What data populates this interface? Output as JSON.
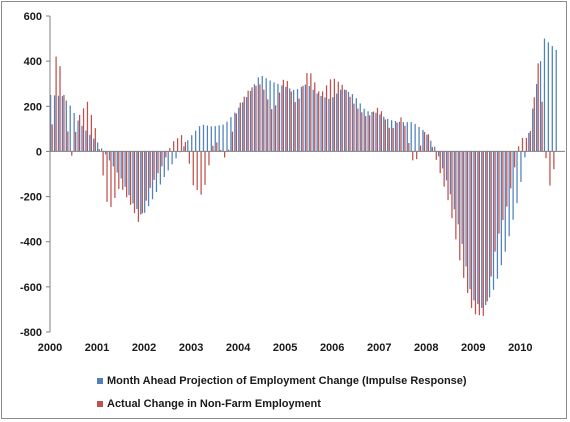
{
  "chart_data": {
    "type": "bar",
    "title": "",
    "xlabel": "",
    "ylabel": "",
    "x_start": 2000,
    "x_end": 2010.95,
    "ylim": [
      -800,
      600
    ],
    "y_ticks": [
      600,
      400,
      200,
      0,
      -200,
      -400,
      -600,
      -800
    ],
    "x_ticks": [
      "2000",
      "2001",
      "2002",
      "2003",
      "2004",
      "2005",
      "2006",
      "2007",
      "2008",
      "2009",
      "2010"
    ],
    "grid": false,
    "legend_position": "bottom",
    "series": [
      {
        "name": "Month Ahead Projection of Employment Change (Impulse Response)",
        "color": "#4f81bd",
        "anchors": [
          [
            2000.0,
            250
          ],
          [
            2000.25,
            245
          ],
          [
            2000.4,
            210
          ],
          [
            2000.6,
            130
          ],
          [
            2000.8,
            80
          ],
          [
            2001.0,
            40
          ],
          [
            2001.25,
            -40
          ],
          [
            2001.5,
            -120
          ],
          [
            2001.75,
            -230
          ],
          [
            2001.95,
            -290
          ],
          [
            2002.2,
            -200
          ],
          [
            2002.45,
            -100
          ],
          [
            2002.7,
            -20
          ],
          [
            2002.95,
            60
          ],
          [
            2003.2,
            120
          ],
          [
            2003.45,
            110
          ],
          [
            2003.7,
            120
          ],
          [
            2003.95,
            180
          ],
          [
            2004.2,
            250
          ],
          [
            2004.45,
            340
          ],
          [
            2004.7,
            310
          ],
          [
            2004.95,
            290
          ],
          [
            2005.2,
            270
          ],
          [
            2005.45,
            300
          ],
          [
            2005.7,
            250
          ],
          [
            2005.95,
            230
          ],
          [
            2006.2,
            280
          ],
          [
            2006.45,
            250
          ],
          [
            2006.7,
            180
          ],
          [
            2006.95,
            170
          ],
          [
            2007.2,
            140
          ],
          [
            2007.45,
            130
          ],
          [
            2007.7,
            130
          ],
          [
            2007.95,
            90
          ],
          [
            2008.2,
            10
          ],
          [
            2008.45,
            -150
          ],
          [
            2008.7,
            -350
          ],
          [
            2008.95,
            -650
          ],
          [
            2009.2,
            -700
          ],
          [
            2009.45,
            -600
          ],
          [
            2009.7,
            -420
          ],
          [
            2009.95,
            -200
          ],
          [
            2010.15,
            60
          ],
          [
            2010.35,
            320
          ],
          [
            2010.5,
            500
          ],
          [
            2010.7,
            460
          ],
          [
            2010.75,
            450
          ]
        ]
      },
      {
        "name": "Actual Change in Non-Farm Employment",
        "color": "#c0504d",
        "anchors": [
          [
            2000.0,
            120
          ],
          [
            2000.1,
            480
          ],
          [
            2000.25,
            250
          ],
          [
            2000.4,
            -40
          ],
          [
            2000.55,
            150
          ],
          [
            2000.75,
            220
          ],
          [
            2000.95,
            80
          ],
          [
            2001.2,
            -270
          ],
          [
            2001.45,
            -150
          ],
          [
            2001.7,
            -250
          ],
          [
            2001.85,
            -320
          ],
          [
            2002.1,
            -150
          ],
          [
            2002.35,
            -60
          ],
          [
            2002.55,
            40
          ],
          [
            2002.8,
            80
          ],
          [
            2003.0,
            -150
          ],
          [
            2003.2,
            -200
          ],
          [
            2003.45,
            60
          ],
          [
            2003.7,
            -40
          ],
          [
            2003.95,
            200
          ],
          [
            2004.2,
            280
          ],
          [
            2004.45,
            300
          ],
          [
            2004.7,
            170
          ],
          [
            2004.95,
            340
          ],
          [
            2005.2,
            200
          ],
          [
            2005.45,
            370
          ],
          [
            2005.7,
            250
          ],
          [
            2005.95,
            330
          ],
          [
            2006.2,
            290
          ],
          [
            2006.45,
            200
          ],
          [
            2006.7,
            150
          ],
          [
            2006.95,
            200
          ],
          [
            2007.2,
            90
          ],
          [
            2007.45,
            160
          ],
          [
            2007.7,
            -70
          ],
          [
            2007.95,
            110
          ],
          [
            2008.2,
            -60
          ],
          [
            2008.45,
            -240
          ],
          [
            2008.7,
            -520
          ],
          [
            2008.95,
            -720
          ],
          [
            2009.2,
            -730
          ],
          [
            2009.45,
            -400
          ],
          [
            2009.7,
            -220
          ],
          [
            2009.95,
            60
          ],
          [
            2010.15,
            60
          ],
          [
            2010.35,
            420
          ],
          [
            2010.55,
            -180
          ],
          [
            2010.7,
            -50
          ]
        ]
      }
    ]
  },
  "legend": {
    "items": [
      {
        "label": "Month Ahead Projection of Employment Change (Impulse Response)",
        "color": "#4f81bd"
      },
      {
        "label": "Actual Change in Non-Farm Employment",
        "color": "#c0504d"
      }
    ]
  }
}
